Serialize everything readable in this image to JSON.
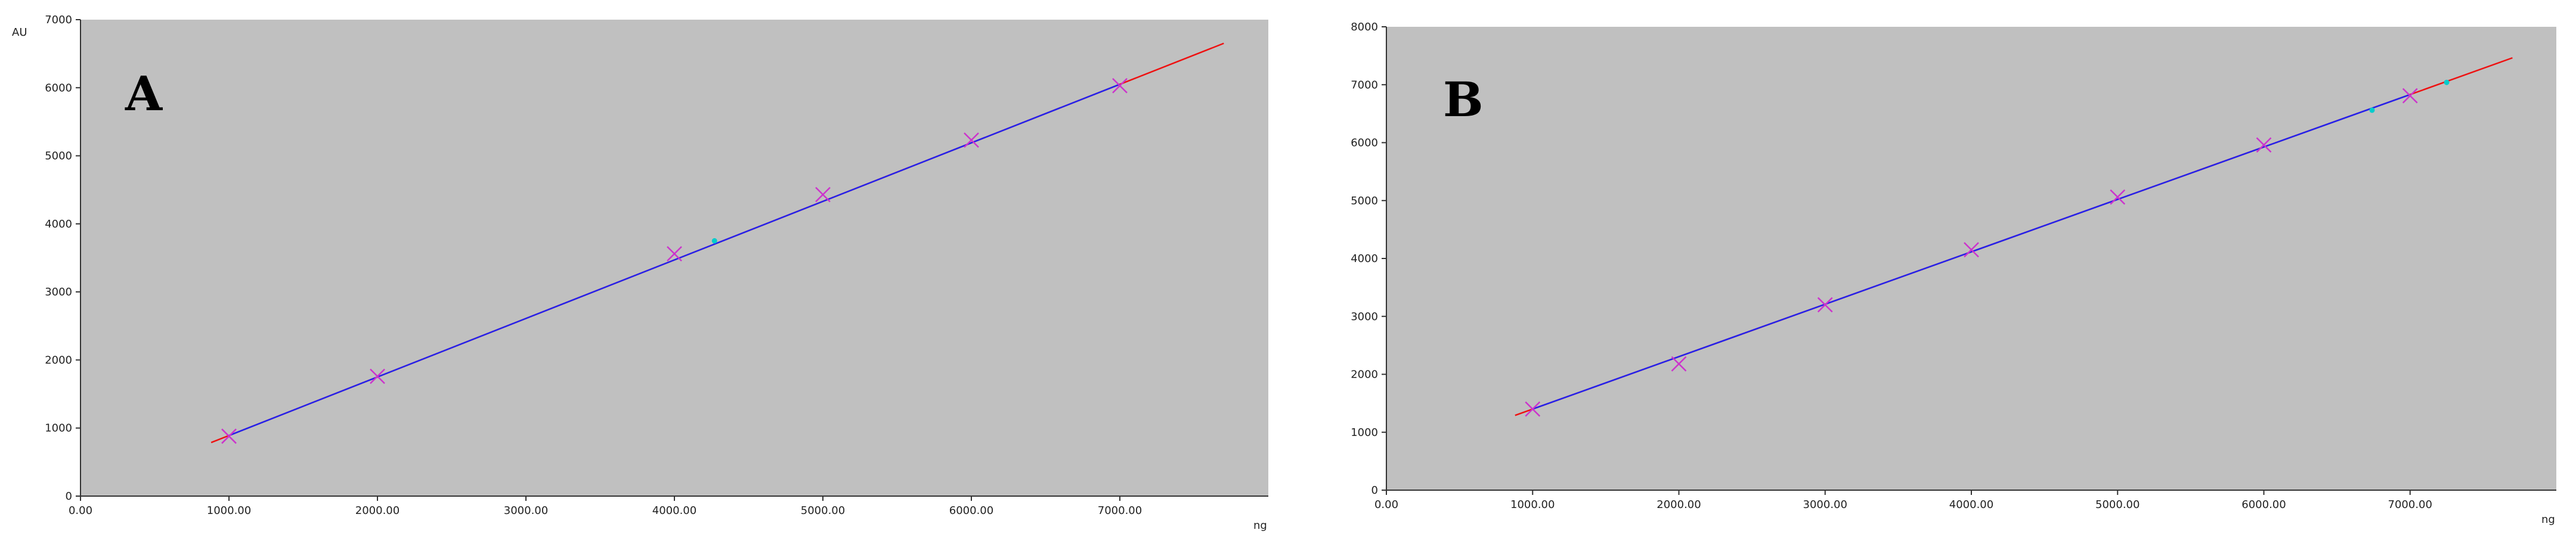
{
  "chart_data": [
    {
      "type": "scatter",
      "panel_label": "A",
      "xlabel": "ng",
      "ylabel": "AU",
      "xlim": [
        0,
        8000
      ],
      "ylim": [
        0,
        7000
      ],
      "x_ticks": [
        0,
        1000,
        2000,
        3000,
        4000,
        5000,
        6000,
        7000
      ],
      "x_tick_labels": [
        "0.00",
        "1000.00",
        "2000.00",
        "3000.00",
        "4000.00",
        "5000.00",
        "6000.00",
        "7000.00"
      ],
      "y_ticks": [
        0,
        1000,
        2000,
        3000,
        4000,
        5000,
        6000,
        7000
      ],
      "y_tick_labels": [
        "0",
        "1000",
        "2000",
        "3000",
        "4000",
        "5000",
        "6000",
        "7000"
      ],
      "background_color": "#c0c0c0",
      "grid": false,
      "series": [
        {
          "kind": "calibration-points",
          "marker": "x",
          "color": "#cc33cc",
          "x": [
            1000,
            2000,
            4000,
            5000,
            6000,
            7000
          ],
          "y": [
            880,
            1760,
            3560,
            4430,
            5230,
            6030
          ]
        },
        {
          "kind": "sample-points",
          "marker": "dot",
          "color": "#00cccc",
          "x": [
            4270
          ],
          "y": [
            3750
          ]
        },
        {
          "kind": "regression-fit",
          "color": "#2222ee",
          "x": [
            1000,
            7000
          ],
          "y": [
            890,
            6050
          ]
        },
        {
          "kind": "regression-extrapolation",
          "color": "#ee1111",
          "x": [
            880,
            7700
          ],
          "y": [
            787,
            6652
          ]
        }
      ]
    },
    {
      "type": "scatter",
      "panel_label": "B",
      "xlabel": "ng",
      "ylabel": "",
      "xlim": [
        0,
        8000
      ],
      "ylim": [
        0,
        8000
      ],
      "x_ticks": [
        0,
        1000,
        2000,
        3000,
        4000,
        5000,
        6000,
        7000
      ],
      "x_tick_labels": [
        "0.00",
        "1000.00",
        "2000.00",
        "3000.00",
        "4000.00",
        "5000.00",
        "6000.00",
        "7000.00"
      ],
      "y_ticks": [
        0,
        1000,
        2000,
        3000,
        4000,
        5000,
        6000,
        7000,
        8000
      ],
      "y_tick_labels": [
        "0",
        "1000",
        "2000",
        "3000",
        "4000",
        "5000",
        "6000",
        "7000",
        "8000"
      ],
      "background_color": "#c0c0c0",
      "grid": false,
      "series": [
        {
          "kind": "calibration-points",
          "marker": "x",
          "color": "#cc33cc",
          "x": [
            1000,
            2000,
            3000,
            4000,
            5000,
            6000,
            7000
          ],
          "y": [
            1400,
            2180,
            3200,
            4150,
            5060,
            5960,
            6810
          ]
        },
        {
          "kind": "sample-points",
          "marker": "dot",
          "color": "#00cccc",
          "x": [
            6740,
            7250
          ],
          "y": [
            6560,
            7040
          ]
        },
        {
          "kind": "regression-fit",
          "color": "#2222ee",
          "x": [
            1000,
            7000
          ],
          "y": [
            1400,
            6830
          ]
        },
        {
          "kind": "regression-extrapolation",
          "color": "#ee1111",
          "x": [
            880,
            7700
          ],
          "y": [
            1291,
            7464
          ]
        }
      ]
    }
  ]
}
